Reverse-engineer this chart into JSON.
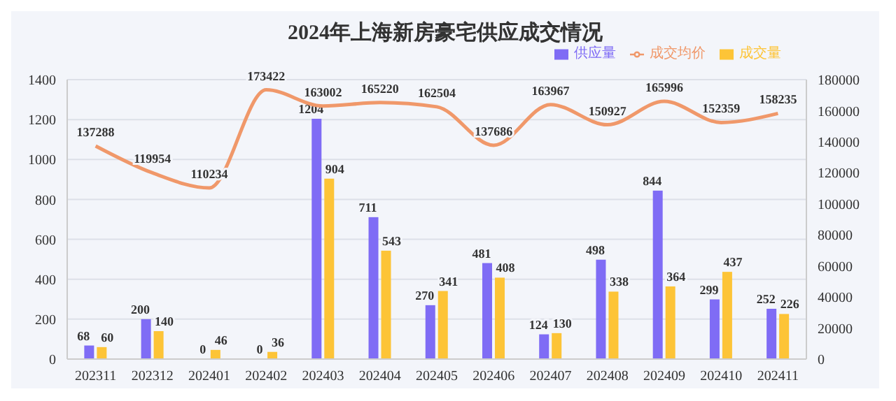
{
  "chart_data": {
    "type": "bar",
    "title": "2024年上海新房豪宅供应成交情况",
    "categories": [
      "202311",
      "202312",
      "202401",
      "202402",
      "202403",
      "202404",
      "202405",
      "202406",
      "202407",
      "202408",
      "202409",
      "202410",
      "202411"
    ],
    "series": [
      {
        "name": "供应量",
        "color": "#7f6cf5",
        "values": [
          68,
          200,
          0,
          0,
          1204,
          711,
          270,
          481,
          124,
          498,
          844,
          299,
          252
        ]
      },
      {
        "name": "成交量",
        "color": "#fdc437",
        "values": [
          60,
          140,
          46,
          36,
          904,
          543,
          341,
          408,
          130,
          338,
          364,
          437,
          226
        ]
      },
      {
        "name": "成交均价",
        "type": "line",
        "axis": "y2",
        "color": "#f0986a",
        "values": [
          137288,
          119954,
          110234,
          173422,
          163002,
          165220,
          162504,
          137686,
          163967,
          150927,
          165996,
          152359,
          158235
        ]
      }
    ],
    "ylim": [
      0,
      1400
    ],
    "yticks": [
      0,
      200,
      400,
      600,
      800,
      1000,
      1200,
      1400
    ],
    "y2lim": [
      0,
      180000
    ],
    "y2ticks": [
      0,
      20000,
      40000,
      60000,
      80000,
      100000,
      120000,
      140000,
      160000,
      180000
    ],
    "grid": "y",
    "legend": "top right",
    "data_labels": true,
    "marker": "none",
    "line_style": "solid"
  }
}
